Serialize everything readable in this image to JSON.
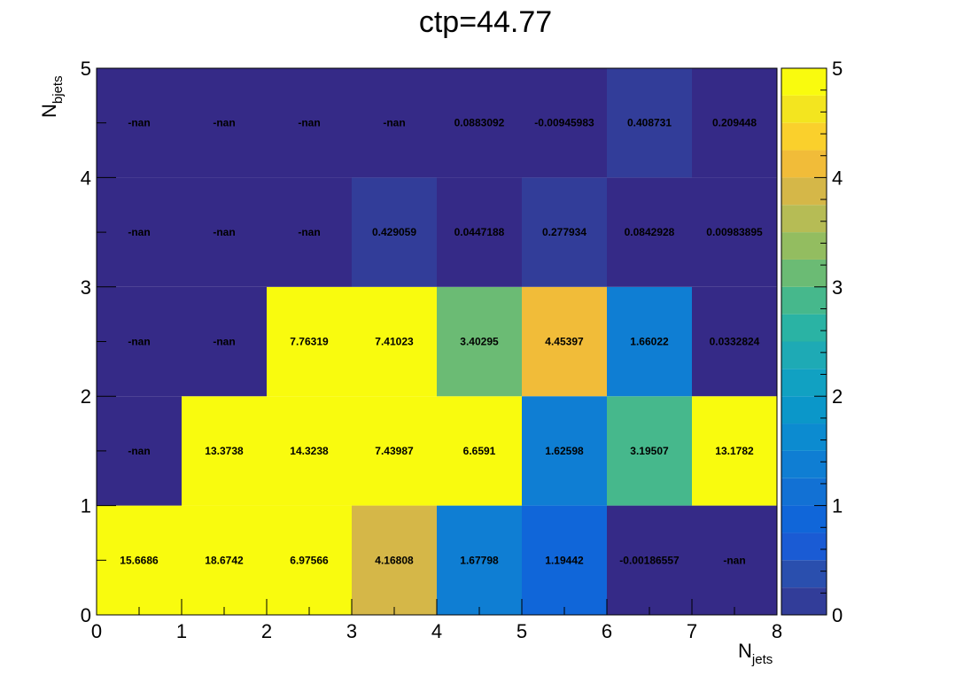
{
  "chart_data": {
    "type": "heatmap",
    "title": "ctp=44.77",
    "xlabel": {
      "main": "N",
      "sub": "jets"
    },
    "ylabel": {
      "main": "N",
      "sub": "bjets"
    },
    "xlim": [
      0,
      8
    ],
    "ylim": [
      0,
      5
    ],
    "x_ticks": [
      "0",
      "1",
      "2",
      "3",
      "4",
      "5",
      "6",
      "7",
      "8"
    ],
    "y_ticks": [
      "0",
      "1",
      "2",
      "3",
      "4",
      "5"
    ],
    "colorbar": {
      "range": [
        0,
        5
      ],
      "ticks": [
        "0",
        "1",
        "2",
        "3",
        "4",
        "5"
      ],
      "palette": "parula",
      "levels": 20
    },
    "cells": [
      [
        "15.6686",
        "18.6742",
        "6.97566",
        "4.16808",
        "1.67798",
        "1.19442",
        "-0.00186557",
        "-nan"
      ],
      [
        "-nan",
        "13.3738",
        "14.3238",
        "7.43987",
        "6.6591",
        "1.62598",
        "3.19507",
        "13.1782"
      ],
      [
        "-nan",
        "-nan",
        "7.76319",
        "7.41023",
        "3.40295",
        "4.45397",
        "1.66022",
        "0.0332824"
      ],
      [
        "-nan",
        "-nan",
        "-nan",
        "0.429059",
        "0.0447188",
        "0.277934",
        "0.0842928",
        "0.00983895"
      ],
      [
        "-nan",
        "-nan",
        "-nan",
        "-nan",
        "0.0883092",
        "-0.00945983",
        "0.408731",
        "0.209448"
      ]
    ]
  }
}
